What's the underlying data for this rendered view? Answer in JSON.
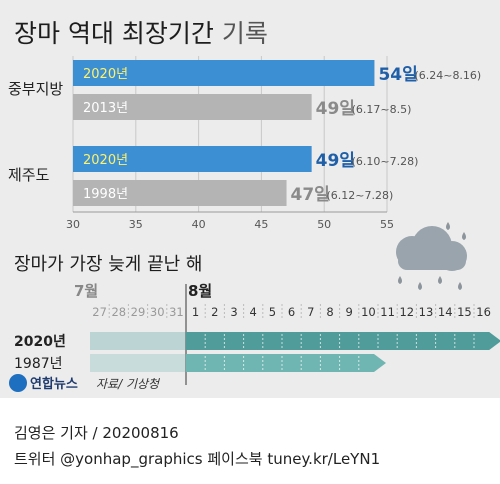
{
  "title_main": "장마 역대 최장기간",
  "title_sub": "기록",
  "chart_data": [
    {
      "type": "bar",
      "orientation": "horizontal",
      "xlim": [
        30,
        55
      ],
      "x_ticks": [
        30,
        35,
        40,
        45,
        50,
        55
      ],
      "grid": true,
      "groups": [
        {
          "region": "중부지방",
          "bars": [
            {
              "year": "2020년",
              "days": 54,
              "days_label": "54일",
              "period": "(6.24~8.16)",
              "highlight": true
            },
            {
              "year": "2013년",
              "days": 49,
              "days_label": "49일",
              "period": "(6.17~8.5)",
              "highlight": false
            }
          ]
        },
        {
          "region": "제주도",
          "bars": [
            {
              "year": "2020년",
              "days": 49,
              "days_label": "49일",
              "period": "(6.10~7.28)",
              "highlight": true
            },
            {
              "year": "1998년",
              "days": 47,
              "days_label": "47일",
              "period": "(6.12~7.28)",
              "highlight": false
            }
          ]
        }
      ]
    },
    {
      "type": "timeline",
      "title": "장마가 가장 늦게 끝난 해",
      "month_labels": [
        "7월",
        "8월"
      ],
      "days_july": [
        "27",
        "28",
        "29",
        "30",
        "31"
      ],
      "days_august": [
        "1",
        "2",
        "3",
        "4",
        "5",
        "6",
        "7",
        "8",
        "9",
        "10",
        "11",
        "12",
        "13",
        "14",
        "15",
        "16"
      ],
      "series": [
        {
          "year": "2020년",
          "end": "8.16",
          "highlight": true
        },
        {
          "year": "1987년",
          "end": "8.10",
          "highlight": false
        }
      ]
    }
  ],
  "colors": {
    "highlight_bar": "#3d8fd4",
    "gray_bar": "#b4b4b4",
    "highlight_text": "#1f5fa8",
    "gray_text": "#8a8a8a",
    "highlight_label": "#fff26a",
    "teal_arrow": "#4f9c9a"
  },
  "icon": "rain-cloud-icon",
  "logo_text": "연합뉴스",
  "source": "자료/ 기상청",
  "footer": {
    "byline": "김영은 기자 / 20200816",
    "twitter": "트위터 @yonhap_graphics  페이스북 tuney.kr/LeYN1"
  }
}
